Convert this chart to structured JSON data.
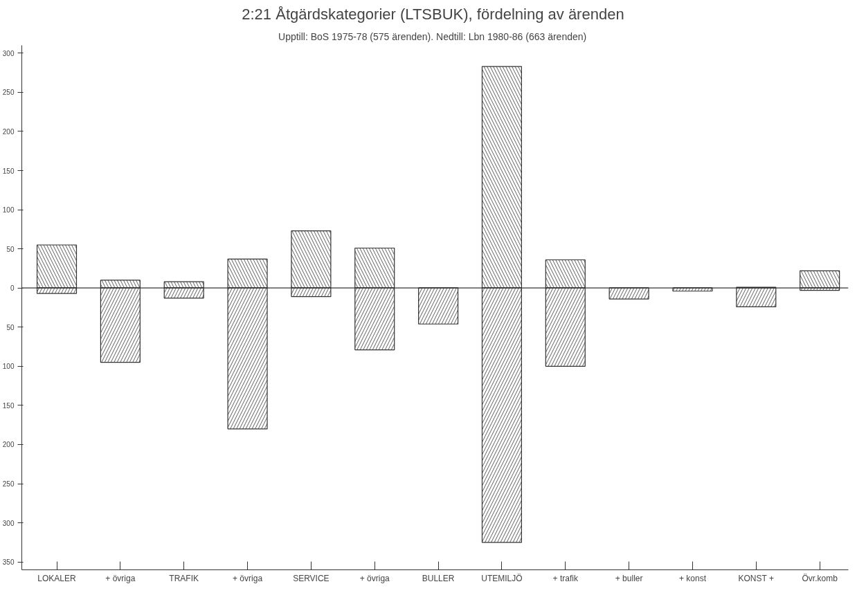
{
  "chart_data": {
    "type": "bar",
    "title": "2:21  Åtgärdskategorier (LTSBUK), fördelning av ärenden",
    "subtitle": "Upptill: BoS 1975-78 (575 ärenden).   Nedtill: Lbn 1980-86 (663 ärenden)",
    "categories": [
      "LOKALER",
      "+ övriga",
      "TRAFIK",
      "+ övriga",
      "SERVICE",
      "+ övriga",
      "BULLER",
      "UTEMILJÖ",
      "+ trafik",
      "+ buller",
      "+ konst",
      "KONST +",
      "Övr.komb"
    ],
    "series": [
      {
        "color": "#333333",
        "values": [
          55,
          10,
          8,
          37,
          73,
          51,
          0,
          283,
          36,
          0,
          0,
          1,
          22
        ]
      },
      {
        "color": "#333333",
        "values": [
          -7,
          -95,
          -13,
          -180,
          -11,
          -79,
          -46,
          -325,
          -100,
          -14,
          -4,
          -24,
          -3
        ]
      }
    ],
    "ylim": [
      -360,
      310
    ],
    "yticks": [
      {
        "value": -350,
        "label": "350"
      },
      {
        "value": -300,
        "label": "300"
      },
      {
        "value": -250,
        "label": "250"
      },
      {
        "value": -200,
        "label": "200"
      },
      {
        "value": -150,
        "label": "150"
      },
      {
        "value": -100,
        "label": "100"
      },
      {
        "value": -50,
        "label": "50"
      },
      0,
      50,
      100,
      150,
      200,
      250,
      300
    ],
    "ref_lines": [
      {
        "axis": "y",
        "value": 0,
        "color": "#333333"
      }
    ],
    "stacked": true,
    "grid": false
  }
}
